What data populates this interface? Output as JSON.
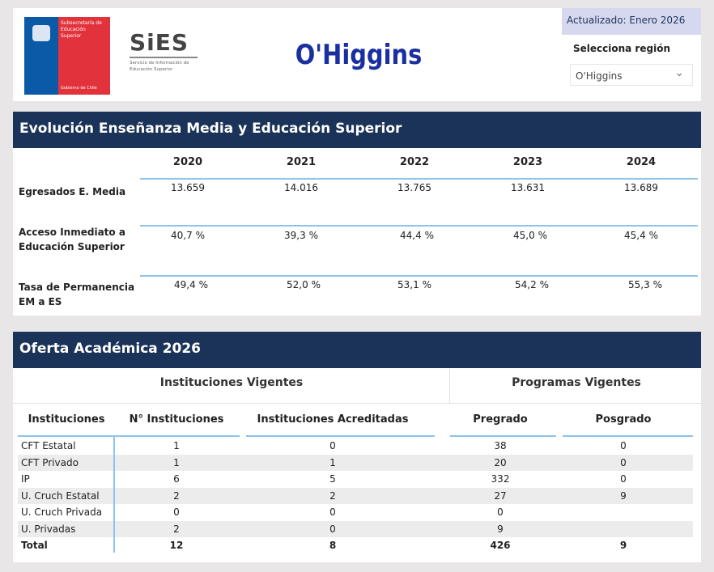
{
  "header": {
    "logo_gov_text": "Subsecretaría de Educación Superior",
    "logo_gov_footer": "Gobierno de Chile",
    "logo_sies": "SiES",
    "logo_sies_sub": "Servicio de Información de Educación Superior",
    "title": "O'Higgins",
    "updated": "Actualizado: Enero 2026",
    "region_label": "Selecciona región",
    "region_value": "O'Higgins"
  },
  "colors": {
    "navy": "#1b3358",
    "title_blue": "#1a2fa0",
    "accent_line": "#8ec3ec",
    "updated_bg": "#d6d8f0"
  },
  "evolucion": {
    "title": "Evolución Enseñanza Media y Educación Superior",
    "years": [
      "2020",
      "2021",
      "2022",
      "2023",
      "2024"
    ],
    "rows": [
      {
        "label": "Egresados E. Media",
        "values": [
          "13.659",
          "14.016",
          "13.765",
          "13.631",
          "13.689"
        ]
      },
      {
        "label": "Acceso Inmediato a Educación Superior",
        "values": [
          "40,7 %",
          "39,3 %",
          "44,4 %",
          "45,0 %",
          "45,4 %"
        ]
      },
      {
        "label": "Tasa de Permanencia EM a ES",
        "values": [
          "49,4 %",
          "52,0 %",
          "53,1 %",
          "54,2 %",
          "55,3 %"
        ]
      }
    ]
  },
  "oferta": {
    "title": "Oferta Académica 2026",
    "group_inst": "Instituciones Vigentes",
    "group_prog": "Programas Vigentes",
    "columns": [
      "Instituciones",
      "N° Instituciones",
      "Instituciones Acreditadas",
      "Pregrado",
      "Posgrado"
    ],
    "rows": [
      [
        "CFT Estatal",
        "1",
        "0",
        "38",
        "0"
      ],
      [
        "CFT Privado",
        "1",
        "1",
        "20",
        "0"
      ],
      [
        "IP",
        "6",
        "5",
        "332",
        "0"
      ],
      [
        "U. Cruch Estatal",
        "2",
        "2",
        "27",
        "9"
      ],
      [
        "U. Cruch Privada",
        "0",
        "0",
        "0",
        ""
      ],
      [
        "U. Privadas",
        "2",
        "0",
        "9",
        ""
      ]
    ],
    "total": [
      "Total",
      "12",
      "8",
      "426",
      "9"
    ]
  }
}
